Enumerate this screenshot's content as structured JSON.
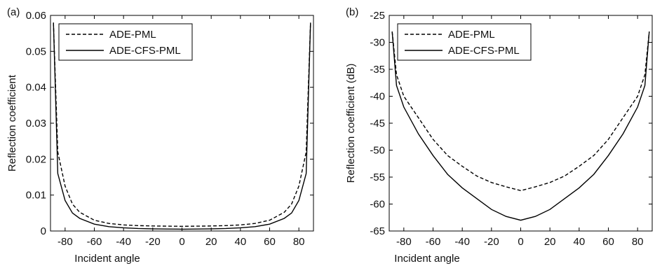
{
  "chart_data": [
    {
      "panel_label": "(a)",
      "type": "line",
      "xlabel": "Incident angle",
      "ylabel": "Reflection coefficient",
      "xlim": [
        -90,
        90
      ],
      "ylim": [
        0,
        0.06
      ],
      "yticks": [
        "0",
        "0.01",
        "0.02",
        "0.03",
        "0.04",
        "0.05",
        "0.06"
      ],
      "xticks": [
        "-80",
        "-60",
        "-40",
        "-20",
        "0",
        "20",
        "40",
        "60",
        "80"
      ],
      "legend_position": "top-left",
      "series": [
        {
          "name": "ADE-PML",
          "style": "dashed",
          "x": [
            -88,
            -85,
            -80,
            -75,
            -70,
            -60,
            -50,
            -40,
            -30,
            -20,
            -10,
            0,
            10,
            20,
            30,
            40,
            50,
            60,
            70,
            75,
            80,
            85,
            88
          ],
          "y": [
            0.058,
            0.022,
            0.0125,
            0.0075,
            0.0052,
            0.003,
            0.0021,
            0.0017,
            0.0015,
            0.0014,
            0.00135,
            0.0013,
            0.00135,
            0.0014,
            0.0015,
            0.0017,
            0.0021,
            0.003,
            0.0052,
            0.0075,
            0.0125,
            0.022,
            0.058
          ]
        },
        {
          "name": "ADE-CFS-PML",
          "style": "solid",
          "x": [
            -88,
            -85,
            -80,
            -75,
            -70,
            -60,
            -50,
            -40,
            -30,
            -20,
            -10,
            0,
            10,
            20,
            30,
            40,
            50,
            60,
            70,
            75,
            80,
            85,
            88
          ],
          "y": [
            0.058,
            0.016,
            0.0085,
            0.005,
            0.0035,
            0.0019,
            0.0012,
            0.0009,
            0.0007,
            0.0006,
            0.00055,
            0.0005,
            0.00055,
            0.0006,
            0.0007,
            0.0009,
            0.0012,
            0.0019,
            0.0035,
            0.005,
            0.0085,
            0.016,
            0.058
          ]
        }
      ]
    },
    {
      "panel_label": "(b)",
      "type": "line",
      "xlabel": "Incident angle",
      "ylabel": "Reflection coefficient (dB)",
      "xlim": [
        -90,
        90
      ],
      "ylim": [
        -65,
        -25
      ],
      "yticks": [
        "-65",
        "-60",
        "-55",
        "-50",
        "-45",
        "-40",
        "-35",
        "-30",
        "-25"
      ],
      "xticks": [
        "-80",
        "-60",
        "-40",
        "-20",
        "0",
        "20",
        "40",
        "60",
        "80"
      ],
      "legend_position": "top-left",
      "series": [
        {
          "name": "ADE-PML",
          "style": "dashed",
          "x": [
            -88,
            -85,
            -80,
            -70,
            -60,
            -50,
            -40,
            -30,
            -20,
            -10,
            0,
            10,
            20,
            30,
            40,
            50,
            60,
            70,
            80,
            85,
            88
          ],
          "y": [
            -28,
            -36,
            -40,
            -44,
            -48,
            -51,
            -53,
            -54.8,
            -56,
            -56.8,
            -57.5,
            -56.8,
            -56,
            -54.8,
            -53,
            -51,
            -48,
            -44,
            -40,
            -36,
            -28
          ]
        },
        {
          "name": "ADE-CFS-PML",
          "style": "solid",
          "x": [
            -88,
            -85,
            -80,
            -70,
            -60,
            -50,
            -40,
            -30,
            -20,
            -10,
            0,
            10,
            20,
            30,
            40,
            50,
            60,
            70,
            80,
            85,
            88
          ],
          "y": [
            -28,
            -38,
            -42,
            -47,
            -51,
            -54.5,
            -57,
            -59,
            -61,
            -62.3,
            -63,
            -62.3,
            -61,
            -59,
            -57,
            -54.5,
            -51,
            -47,
            -42,
            -38,
            -28
          ]
        }
      ]
    }
  ]
}
